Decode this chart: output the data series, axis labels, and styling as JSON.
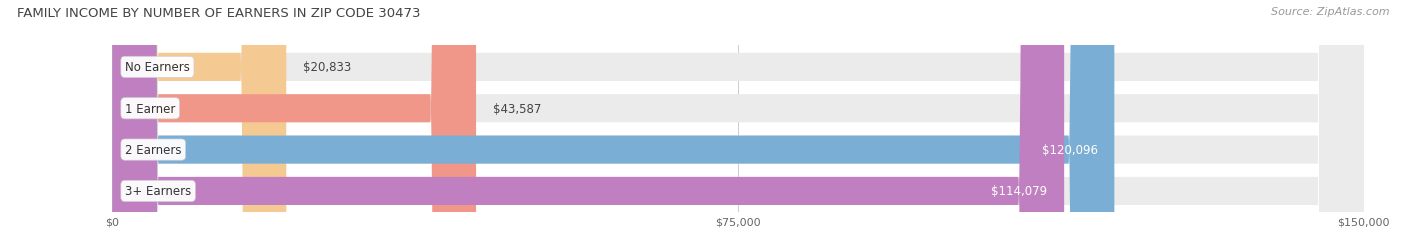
{
  "title": "FAMILY INCOME BY NUMBER OF EARNERS IN ZIP CODE 30473",
  "source": "Source: ZipAtlas.com",
  "categories": [
    "No Earners",
    "1 Earner",
    "2 Earners",
    "3+ Earners"
  ],
  "values": [
    20833,
    43587,
    120096,
    114079
  ],
  "bar_colors": [
    "#f5c992",
    "#f0978a",
    "#7baed4",
    "#c07fc0"
  ],
  "xlim": [
    0,
    150000
  ],
  "xticks": [
    0,
    75000,
    150000
  ],
  "xtick_labels": [
    "$0",
    "$75,000",
    "$150,000"
  ],
  "background_color": "#ffffff",
  "bar_background_color": "#ebebeb",
  "title_fontsize": 9.5,
  "source_fontsize": 8,
  "label_fontsize": 8.5,
  "category_fontsize": 8.5
}
